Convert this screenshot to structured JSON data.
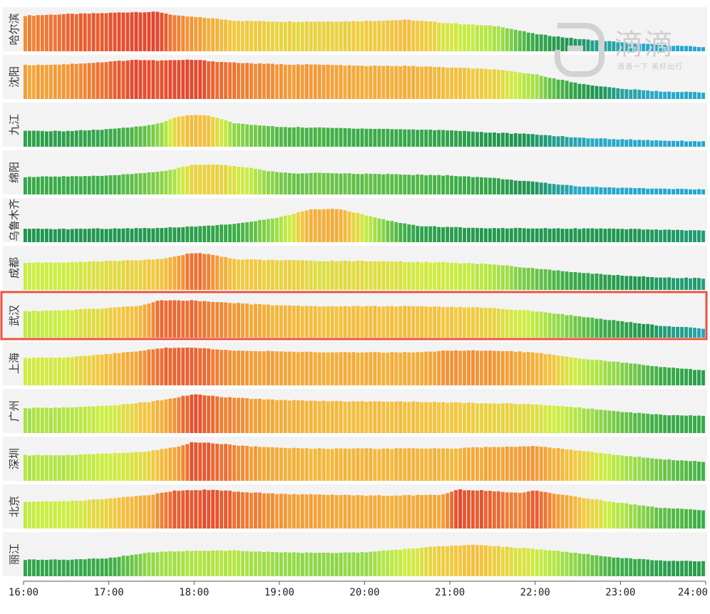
{
  "logo": {
    "text": "滴滴",
    "slogan": "滴滴一下 美好出行",
    "color": "#cfcfcf"
  },
  "highlight": {
    "city": "武汉",
    "color": "#e8533f"
  },
  "colors": {
    "low": "#13a9e0",
    "mid_low": "#1e9e46",
    "mid": "#c6f53a",
    "high": "#f5b532",
    "peak": "#e8402c",
    "panel_bg": "#f3f3f3"
  },
  "chart_data": {
    "type": "bar",
    "description_free": true,
    "x_ticks": [
      "16:00",
      "17:00",
      "18:00",
      "19:00",
      "20:00",
      "21:00",
      "22:00",
      "23:00",
      "24:00"
    ],
    "x_range": [
      "16:00",
      "24:00"
    ],
    "y_range": [
      0,
      1
    ],
    "series": [
      {
        "name": "哈尔滨",
        "keypoints": [
          [
            0,
            0.86
          ],
          [
            0.5,
            0.9
          ],
          [
            0.9,
            0.92
          ],
          [
            1.3,
            0.95
          ],
          [
            1.6,
            0.95
          ],
          [
            1.8,
            0.86
          ],
          [
            2.2,
            0.8
          ],
          [
            2.5,
            0.74
          ],
          [
            3,
            0.72
          ],
          [
            3.5,
            0.72
          ],
          [
            4,
            0.73
          ],
          [
            4.5,
            0.76
          ],
          [
            5,
            0.68
          ],
          [
            5.6,
            0.6
          ],
          [
            6,
            0.42
          ],
          [
            6.5,
            0.3
          ],
          [
            7,
            0.22
          ],
          [
            7.5,
            0.15
          ],
          [
            8,
            0.1
          ]
        ]
      },
      {
        "name": "沈阳",
        "keypoints": [
          [
            0,
            0.82
          ],
          [
            0.5,
            0.84
          ],
          [
            1,
            0.9
          ],
          [
            1.3,
            0.95
          ],
          [
            1.6,
            0.93
          ],
          [
            2,
            0.95
          ],
          [
            2.3,
            0.9
          ],
          [
            2.7,
            0.86
          ],
          [
            3,
            0.84
          ],
          [
            3.5,
            0.83
          ],
          [
            4,
            0.8
          ],
          [
            4.5,
            0.8
          ],
          [
            5,
            0.76
          ],
          [
            5.5,
            0.72
          ],
          [
            6,
            0.6
          ],
          [
            6.5,
            0.38
          ],
          [
            7,
            0.25
          ],
          [
            7.5,
            0.18
          ],
          [
            8,
            0.16
          ]
        ]
      },
      {
        "name": "九江",
        "keypoints": [
          [
            0,
            0.38
          ],
          [
            0.5,
            0.38
          ],
          [
            1,
            0.42
          ],
          [
            1.3,
            0.48
          ],
          [
            1.6,
            0.56
          ],
          [
            1.8,
            0.72
          ],
          [
            2,
            0.78
          ],
          [
            2.2,
            0.74
          ],
          [
            2.5,
            0.56
          ],
          [
            3,
            0.48
          ],
          [
            3.5,
            0.46
          ],
          [
            4,
            0.44
          ],
          [
            4.5,
            0.42
          ],
          [
            5,
            0.4
          ],
          [
            5.5,
            0.34
          ],
          [
            6,
            0.3
          ],
          [
            6.5,
            0.22
          ],
          [
            7,
            0.18
          ],
          [
            7.5,
            0.15
          ],
          [
            8,
            0.13
          ]
        ]
      },
      {
        "name": "绵阳",
        "keypoints": [
          [
            0,
            0.42
          ],
          [
            0.5,
            0.44
          ],
          [
            1,
            0.45
          ],
          [
            1.4,
            0.52
          ],
          [
            1.7,
            0.58
          ],
          [
            2,
            0.72
          ],
          [
            2.3,
            0.72
          ],
          [
            2.6,
            0.66
          ],
          [
            2.9,
            0.56
          ],
          [
            3.2,
            0.5
          ],
          [
            3.5,
            0.52
          ],
          [
            4,
            0.5
          ],
          [
            4.5,
            0.48
          ],
          [
            5,
            0.46
          ],
          [
            5.5,
            0.4
          ],
          [
            6,
            0.3
          ],
          [
            6.5,
            0.2
          ],
          [
            7,
            0.16
          ],
          [
            7.5,
            0.14
          ],
          [
            8,
            0.12
          ]
        ]
      },
      {
        "name": "乌鲁木齐",
        "keypoints": [
          [
            0,
            0.32
          ],
          [
            0.5,
            0.32
          ],
          [
            1,
            0.33
          ],
          [
            1.5,
            0.34
          ],
          [
            2,
            0.38
          ],
          [
            2.5,
            0.44
          ],
          [
            3,
            0.6
          ],
          [
            3.4,
            0.8
          ],
          [
            3.7,
            0.8
          ],
          [
            4,
            0.66
          ],
          [
            4.3,
            0.52
          ],
          [
            4.6,
            0.4
          ],
          [
            5,
            0.36
          ],
          [
            5.5,
            0.34
          ],
          [
            6,
            0.34
          ],
          [
            6.5,
            0.33
          ],
          [
            7,
            0.32
          ],
          [
            7.5,
            0.3
          ],
          [
            8,
            0.28
          ]
        ]
      },
      {
        "name": "成都",
        "keypoints": [
          [
            0,
            0.66
          ],
          [
            0.5,
            0.66
          ],
          [
            1,
            0.7
          ],
          [
            1.3,
            0.72
          ],
          [
            1.6,
            0.74
          ],
          [
            1.8,
            0.82
          ],
          [
            2,
            0.9
          ],
          [
            2.2,
            0.86
          ],
          [
            2.5,
            0.74
          ],
          [
            3,
            0.72
          ],
          [
            3.5,
            0.7
          ],
          [
            4,
            0.7
          ],
          [
            4.5,
            0.68
          ],
          [
            5,
            0.66
          ],
          [
            5.5,
            0.62
          ],
          [
            6,
            0.52
          ],
          [
            6.5,
            0.42
          ],
          [
            7,
            0.35
          ],
          [
            7.5,
            0.3
          ],
          [
            8,
            0.28
          ]
        ]
      },
      {
        "name": "武汉",
        "keypoints": [
          [
            0,
            0.64
          ],
          [
            0.5,
            0.66
          ],
          [
            1,
            0.72
          ],
          [
            1.4,
            0.78
          ],
          [
            1.6,
            0.9
          ],
          [
            1.8,
            0.9
          ],
          [
            2,
            0.9
          ],
          [
            2.3,
            0.86
          ],
          [
            2.6,
            0.82
          ],
          [
            3,
            0.78
          ],
          [
            3.5,
            0.76
          ],
          [
            4,
            0.76
          ],
          [
            4.5,
            0.76
          ],
          [
            5,
            0.74
          ],
          [
            5.5,
            0.72
          ],
          [
            6,
            0.64
          ],
          [
            6.5,
            0.52
          ],
          [
            7,
            0.4
          ],
          [
            7.5,
            0.28
          ],
          [
            8,
            0.22
          ]
        ]
      },
      {
        "name": "上海",
        "keypoints": [
          [
            0,
            0.66
          ],
          [
            0.5,
            0.68
          ],
          [
            1,
            0.76
          ],
          [
            1.3,
            0.82
          ],
          [
            1.6,
            0.9
          ],
          [
            2,
            0.92
          ],
          [
            2.3,
            0.86
          ],
          [
            2.6,
            0.84
          ],
          [
            3,
            0.82
          ],
          [
            3.5,
            0.8
          ],
          [
            4,
            0.8
          ],
          [
            4.5,
            0.8
          ],
          [
            5,
            0.84
          ],
          [
            5.5,
            0.84
          ],
          [
            6,
            0.8
          ],
          [
            6.5,
            0.66
          ],
          [
            7,
            0.56
          ],
          [
            7.5,
            0.44
          ],
          [
            8,
            0.36
          ]
        ]
      },
      {
        "name": "广州",
        "keypoints": [
          [
            0,
            0.6
          ],
          [
            0.5,
            0.62
          ],
          [
            1,
            0.66
          ],
          [
            1.5,
            0.76
          ],
          [
            1.8,
            0.86
          ],
          [
            2,
            0.94
          ],
          [
            2.3,
            0.88
          ],
          [
            2.6,
            0.84
          ],
          [
            3,
            0.8
          ],
          [
            3.5,
            0.78
          ],
          [
            4,
            0.76
          ],
          [
            4.5,
            0.76
          ],
          [
            5,
            0.74
          ],
          [
            5.5,
            0.72
          ],
          [
            6,
            0.7
          ],
          [
            6.5,
            0.62
          ],
          [
            7,
            0.52
          ],
          [
            7.5,
            0.44
          ],
          [
            8,
            0.42
          ]
        ]
      },
      {
        "name": "深圳",
        "keypoints": [
          [
            0,
            0.62
          ],
          [
            0.5,
            0.62
          ],
          [
            1,
            0.66
          ],
          [
            1.4,
            0.7
          ],
          [
            1.8,
            0.82
          ],
          [
            2,
            0.94
          ],
          [
            2.3,
            0.9
          ],
          [
            2.6,
            0.84
          ],
          [
            3,
            0.8
          ],
          [
            3.5,
            0.78
          ],
          [
            4,
            0.78
          ],
          [
            4.5,
            0.78
          ],
          [
            5,
            0.78
          ],
          [
            5.5,
            0.82
          ],
          [
            6,
            0.84
          ],
          [
            6.4,
            0.76
          ],
          [
            7,
            0.62
          ],
          [
            7.5,
            0.52
          ],
          [
            8,
            0.46
          ]
        ]
      },
      {
        "name": "北京",
        "keypoints": [
          [
            0,
            0.64
          ],
          [
            0.5,
            0.66
          ],
          [
            1,
            0.72
          ],
          [
            1.5,
            0.82
          ],
          [
            1.8,
            0.92
          ],
          [
            2.2,
            0.94
          ],
          [
            2.6,
            0.88
          ],
          [
            3,
            0.84
          ],
          [
            3.5,
            0.82
          ],
          [
            4,
            0.8
          ],
          [
            4.5,
            0.8
          ],
          [
            4.9,
            0.82
          ],
          [
            5.1,
            0.94
          ],
          [
            5.4,
            0.92
          ],
          [
            5.8,
            0.86
          ],
          [
            6,
            0.92
          ],
          [
            6.3,
            0.82
          ],
          [
            7,
            0.62
          ],
          [
            7.5,
            0.5
          ],
          [
            8,
            0.44
          ]
        ]
      },
      {
        "name": "丽江",
        "keypoints": [
          [
            0,
            0.4
          ],
          [
            0.5,
            0.4
          ],
          [
            1,
            0.44
          ],
          [
            1.5,
            0.58
          ],
          [
            2,
            0.62
          ],
          [
            2.5,
            0.62
          ],
          [
            3,
            0.58
          ],
          [
            3.5,
            0.56
          ],
          [
            4,
            0.58
          ],
          [
            4.5,
            0.66
          ],
          [
            5,
            0.74
          ],
          [
            5.3,
            0.76
          ],
          [
            5.6,
            0.72
          ],
          [
            6,
            0.66
          ],
          [
            6.5,
            0.56
          ],
          [
            7,
            0.44
          ],
          [
            7.5,
            0.38
          ],
          [
            8,
            0.36
          ]
        ]
      }
    ],
    "bars_per_hour": 20
  }
}
